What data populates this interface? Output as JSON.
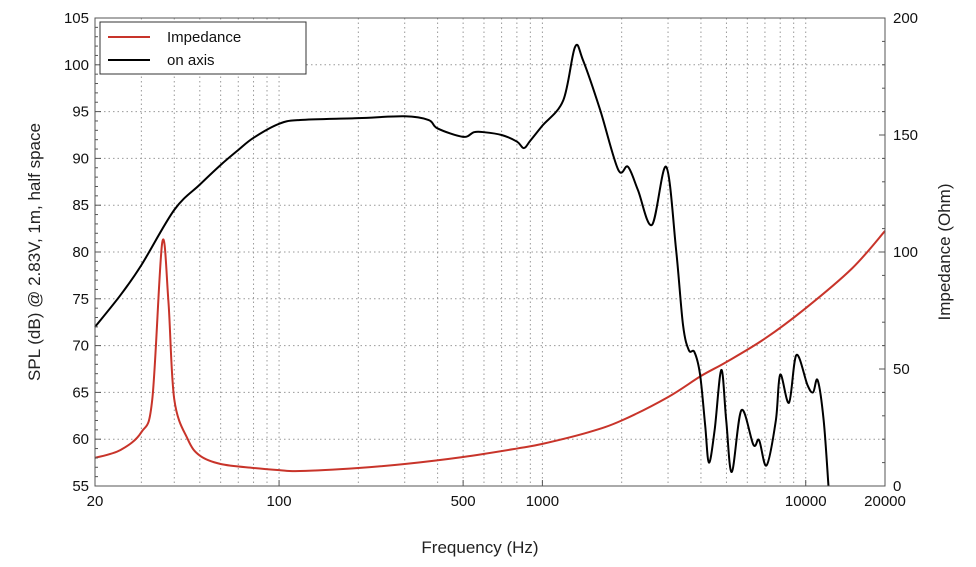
{
  "chart_data": {
    "type": "line",
    "xlabel": "Frequency (Hz)",
    "ylabel": "SPL (dB) @ 2.83V, 1m, half space",
    "y2label": "Impedance (Ohm)",
    "xscale": "log",
    "xlim": [
      20,
      20000
    ],
    "ylim": [
      55,
      105
    ],
    "y2lim": [
      0,
      200
    ],
    "xticks": [
      20,
      100,
      500,
      1000,
      10000,
      20000
    ],
    "yticks": [
      55,
      60,
      65,
      70,
      75,
      80,
      85,
      90,
      95,
      100,
      105
    ],
    "y2ticks": [
      0,
      50,
      100,
      150,
      200
    ],
    "grid": true,
    "legend": "top-left",
    "series": [
      {
        "name": "Impedance",
        "axis": "right",
        "color": "#c8342a",
        "x": [
          20,
          25,
          30,
          33,
          36,
          38,
          40,
          45,
          50,
          60,
          80,
          100,
          120,
          200,
          300,
          500,
          800,
          1000,
          1500,
          2000,
          3000,
          4000,
          5000,
          7000,
          10000,
          15000,
          20000
        ],
        "y": [
          12,
          15.4,
          23,
          37,
          104,
          79,
          37,
          20,
          13,
          9.4,
          7.7,
          6.8,
          6.4,
          7.7,
          9.4,
          12.4,
          16,
          18,
          23,
          28,
          38,
          47,
          53,
          63,
          76,
          93,
          109
        ]
      },
      {
        "name": "on axis",
        "axis": "left",
        "color": "#000000",
        "x": [
          20,
          25,
          30,
          40,
          50,
          60,
          70,
          80,
          100,
          120,
          200,
          300,
          370,
          400,
          500,
          550,
          600,
          700,
          800,
          850,
          900,
          1000,
          1200,
          1330,
          1426,
          1656,
          1940,
          2114,
          2307,
          2607,
          2950,
          3220,
          3420,
          3600,
          3780,
          3970,
          4150,
          4290,
          4510,
          4780,
          4990,
          5240,
          5700,
          6330,
          6650,
          7100,
          7700,
          8000,
          8640,
          9220,
          10150,
          10660,
          11100,
          11700,
          12200
        ],
        "y": [
          72,
          75.4,
          78.6,
          84.5,
          87.2,
          89.3,
          90.9,
          92.2,
          93.7,
          94.1,
          94.3,
          94.5,
          94.1,
          93.2,
          92.3,
          92.8,
          92.8,
          92.5,
          91.8,
          91.1,
          91.9,
          93.5,
          96.2,
          101.9,
          100.5,
          95.2,
          88.8,
          89.1,
          86.6,
          82.9,
          89.1,
          80.2,
          72.2,
          69.5,
          69.3,
          66.9,
          61.5,
          57.5,
          61,
          67.4,
          62,
          56.5,
          63.1,
          59.4,
          59.9,
          57.2,
          62,
          66.9,
          63.9,
          69,
          65.8,
          65,
          66.3,
          62,
          55
        ]
      }
    ]
  }
}
